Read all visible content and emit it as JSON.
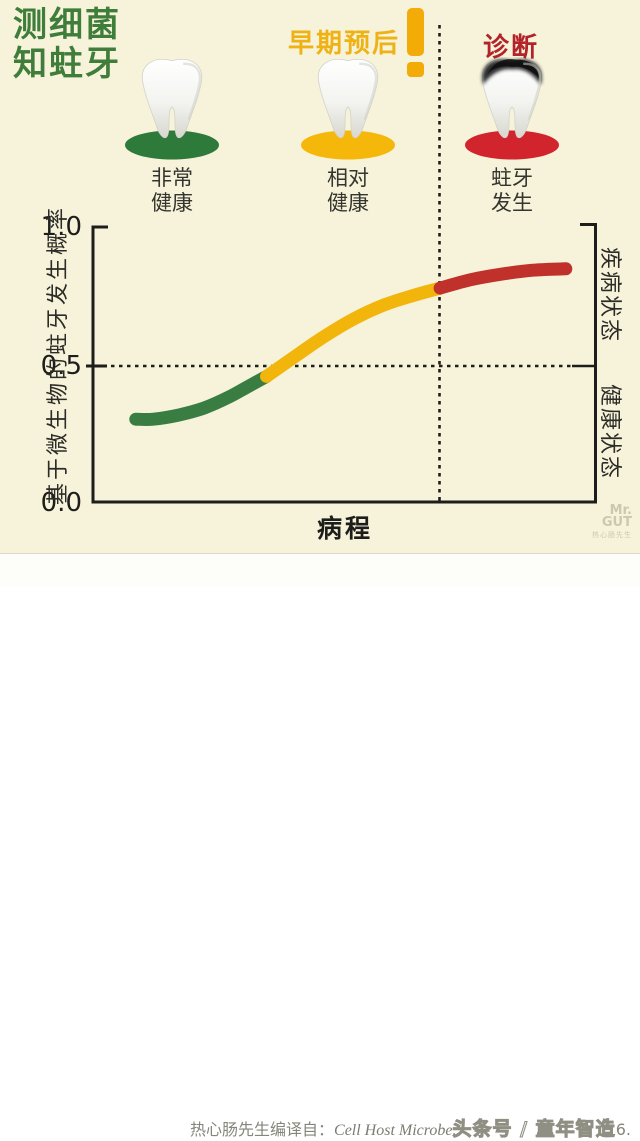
{
  "colors": {
    "background": "#f7f3da",
    "title_green": "#3f7d3a",
    "stage_yellow": "#eeb214",
    "stage_red": "#b2232a",
    "curve_green": "#3a7d43",
    "curve_yellow": "#f2b50c",
    "curve_red": "#c1312b",
    "oval_green": "#2e7a3a",
    "oval_yellow": "#f5b70a",
    "oval_red": "#d2242c",
    "axis": "#1d1d1b"
  },
  "header": {
    "title_line1": "测细菌",
    "title_line2": "知蛀牙",
    "stage_early_label": "早期预后",
    "stage_early_mark": "!",
    "stage_diagnosis_label": "诊断",
    "columns": [
      {
        "caption_line1": "非常",
        "caption_line2": "健康",
        "oval_color": "#2e7a3a",
        "tooth_state": "healthy"
      },
      {
        "caption_line1": "相对",
        "caption_line2": "健康",
        "oval_color": "#f5b70a",
        "tooth_state": "healthy"
      },
      {
        "caption_line1": "蛀牙",
        "caption_line2": "发生",
        "oval_color": "#d2242c",
        "tooth_state": "decayed"
      }
    ]
  },
  "chart_data": {
    "type": "line",
    "title": "",
    "xlabel": "病程",
    "ylabel": "基于微生物的蛙牙发生概率",
    "ylabel_text": "基于微生物的蛀牙发生概率",
    "ylim": [
      0.0,
      1.0
    ],
    "yticks": [
      1.0,
      0.5,
      0.0
    ],
    "ytick_labels": [
      "1.0",
      "0.5",
      "0.0"
    ],
    "grid": "off",
    "legend_position": "none",
    "right_axis_labels": [
      "疾病状态",
      "健康状态"
    ],
    "reference_lines": {
      "horizontal_dotted_at_y": 0.5,
      "vertical_dotted_at_x_fraction": 0.69,
      "style": "dotted"
    },
    "series": [
      {
        "name": "非常健康",
        "zone": "green",
        "color": "#3a7d43",
        "x": [
          0.085,
          0.12,
          0.17,
          0.22,
          0.27,
          0.31,
          0.345
        ],
        "y": [
          0.3,
          0.3,
          0.315,
          0.34,
          0.38,
          0.42,
          0.455
        ]
      },
      {
        "name": "相对健康",
        "zone": "yellow",
        "color": "#f2b50c",
        "x": [
          0.345,
          0.4,
          0.46,
          0.52,
          0.58,
          0.64,
          0.69
        ],
        "y": [
          0.455,
          0.525,
          0.6,
          0.665,
          0.715,
          0.75,
          0.775
        ]
      },
      {
        "name": "蛀牙发生",
        "zone": "red",
        "color": "#c1312b",
        "x": [
          0.69,
          0.75,
          0.81,
          0.875,
          0.94
        ],
        "y": [
          0.775,
          0.805,
          0.825,
          0.84,
          0.845
        ]
      }
    ]
  },
  "footer": {
    "credit_prefix": "热心肠先生编译自：",
    "credit_source": "Cell Host Microbe.",
    "watermark": "头条号 / 童年智造",
    "credit_tail": "6.",
    "logo_line1": "Mr.",
    "logo_line2": "GUT",
    "logo_line3": "热心肠先生"
  }
}
